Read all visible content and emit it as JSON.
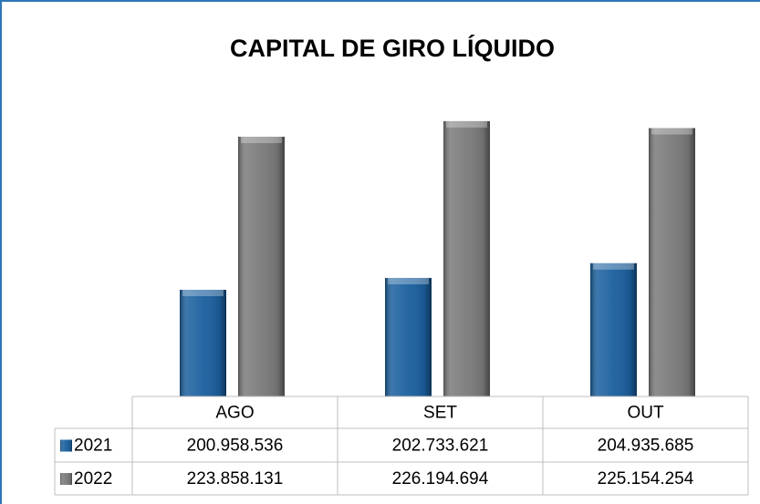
{
  "chart_data": {
    "type": "bar",
    "title": "CAPITAL DE GIRO LÍQUIDO",
    "categories": [
      "AGO",
      "SET",
      "OUT"
    ],
    "series": [
      {
        "name": "2021",
        "color": "#1a5f9e",
        "values": [
          200958536,
          202733621,
          204935685
        ],
        "value_labels": [
          "200.958.536",
          "202.733.621",
          "204.935.685"
        ]
      },
      {
        "name": "2022",
        "color": "#7a7a7a",
        "values": [
          223858131,
          226194694,
          225154254
        ],
        "value_labels": [
          "223.858.131",
          "226.194.694",
          "225.154.254"
        ]
      }
    ],
    "ylim": [
      185000000,
      230000000
    ]
  }
}
